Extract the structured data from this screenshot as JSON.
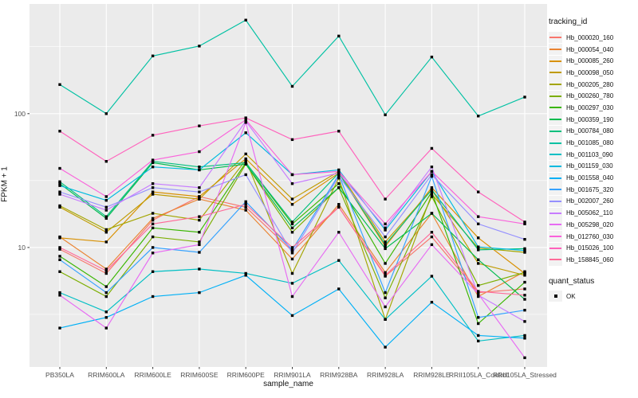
{
  "chart_data": {
    "type": "line",
    "title": "",
    "xlabel": "sample_name",
    "ylabel": "FPKM + 1",
    "legend_title": "tracking_id",
    "quant_legend": {
      "title": "quant_status",
      "items": [
        "OK"
      ]
    },
    "x_categories": [
      "PB350LA",
      "RRIM600LA",
      "RRIM600LE",
      "RRIM600SE",
      "RRIM600PE",
      "RRIM901LA",
      "RRIM928BA",
      "RRIM928LA",
      "RRIM928LE",
      "RRII105LA_Control",
      "RRII105LA_Stressed"
    ],
    "y_scale": "log10",
    "y_ticks": [
      10,
      100
    ],
    "y_minor_ticks": [
      3.162,
      31.62,
      316.2
    ],
    "ylim": [
      1.28,
      660
    ],
    "grid": true,
    "legend_position": "right",
    "point_shape": "square",
    "point_color": "#000000",
    "style": {
      "panel_bg": "#ebebeb",
      "grid_color": "#ffffff",
      "tick_label_color": "#4d4d4d",
      "legend_key_bg": "#f2f2f2",
      "tick_mark_color": "#333333"
    },
    "series": [
      {
        "name": "Hb_000020_160",
        "color": "#F8766D",
        "values": [
          9.7,
          6.4,
          16,
          24,
          20,
          9.4,
          20,
          6.1,
          12,
          4.6,
          4.9
        ]
      },
      {
        "name": "Hb_000054_040",
        "color": "#EA8331",
        "values": [
          12,
          6.9,
          16.5,
          23,
          19,
          8.2,
          21,
          6.5,
          18,
          4.3,
          6.6
        ]
      },
      {
        "name": "Hb_000085_260",
        "color": "#D89000",
        "values": [
          11.8,
          11,
          26,
          24,
          46,
          21,
          36,
          10.2,
          28,
          11.8,
          6.4
        ]
      },
      {
        "name": "Hb_000098_050",
        "color": "#C09B00",
        "values": [
          20,
          13,
          25,
          23,
          50,
          23,
          37,
          11,
          27,
          7.6,
          6.2
        ]
      },
      {
        "name": "Hb_000205_280",
        "color": "#A3A500",
        "values": [
          20.5,
          13.6,
          18,
          16,
          45,
          6.4,
          33,
          2.9,
          25,
          9.9,
          9.2
        ]
      },
      {
        "name": "Hb_000260_780",
        "color": "#7CAE00",
        "values": [
          6.6,
          4.3,
          12,
          11,
          42,
          13,
          28,
          4.2,
          24,
          5.2,
          6.5
        ]
      },
      {
        "name": "Hb_000297_030",
        "color": "#39B600",
        "values": [
          8.6,
          5.1,
          14,
          13,
          43,
          15,
          30,
          7.6,
          26,
          2.7,
          5.5
        ]
      },
      {
        "name": "Hb_000359_190",
        "color": "#00BB4E",
        "values": [
          30,
          16.5,
          43,
          38,
          42,
          14,
          28,
          9.8,
          18,
          8.1,
          4.1
        ]
      },
      {
        "name": "Hb_000784_080",
        "color": "#00BF7D",
        "values": [
          31,
          17,
          44,
          40,
          43,
          15.5,
          36,
          10.5,
          27,
          9.6,
          9.8
        ]
      },
      {
        "name": "Hb_001085_080",
        "color": "#00C1A3",
        "values": [
          165,
          100,
          270,
          320,
          500,
          160,
          380,
          98,
          265,
          96,
          133
        ]
      },
      {
        "name": "Hb_001103_090",
        "color": "#00BFC4",
        "values": [
          4.6,
          3.3,
          6.6,
          6.9,
          6.4,
          5.4,
          8,
          2.9,
          6.1,
          2.0,
          2.2
        ]
      },
      {
        "name": "Hb_001159_030",
        "color": "#00BAE0",
        "values": [
          29,
          22.5,
          40,
          38,
          72,
          35,
          38,
          13.5,
          37,
          10.1,
          9.5
        ]
      },
      {
        "name": "Hb_001558_040",
        "color": "#00B0F6",
        "values": [
          2.5,
          3.0,
          4.3,
          4.6,
          6.2,
          3.1,
          4.9,
          1.8,
          3.9,
          2.2,
          2.1
        ]
      },
      {
        "name": "Hb_001675_320",
        "color": "#35A2FF",
        "values": [
          8.1,
          4.6,
          10,
          9.2,
          22,
          9.6,
          35,
          4.6,
          34,
          3.0,
          3.4
        ]
      },
      {
        "name": "Hb_002007_260",
        "color": "#9590FF",
        "values": [
          26,
          20,
          28,
          26,
          35,
          9.1,
          34,
          12,
          35,
          15,
          11.5
        ]
      },
      {
        "name": "Hb_005062_110",
        "color": "#C77CFF",
        "values": [
          25,
          19,
          30,
          28,
          88,
          30,
          36,
          14,
          40,
          4.4,
          2.8
        ]
      },
      {
        "name": "Hb_005298_020",
        "color": "#E76BF3",
        "values": [
          4.4,
          2.5,
          9.1,
          10.5,
          86,
          4.3,
          13,
          3.6,
          10.5,
          4.5,
          1.5
        ]
      },
      {
        "name": "Hb_012760_030",
        "color": "#FA62DB",
        "values": [
          39,
          24,
          45,
          52,
          90,
          35,
          37,
          15,
          37,
          17,
          15
        ]
      },
      {
        "name": "Hb_015026_100",
        "color": "#FF62BC",
        "values": [
          74,
          44,
          69,
          81,
          93,
          64,
          74,
          23,
          55,
          26,
          15.5
        ]
      },
      {
        "name": "Hb_158845_060",
        "color": "#FF6A98",
        "values": [
          10,
          6.7,
          15,
          17,
          21,
          10,
          20,
          6.2,
          13,
          4.7,
          4.4
        ]
      }
    ]
  }
}
